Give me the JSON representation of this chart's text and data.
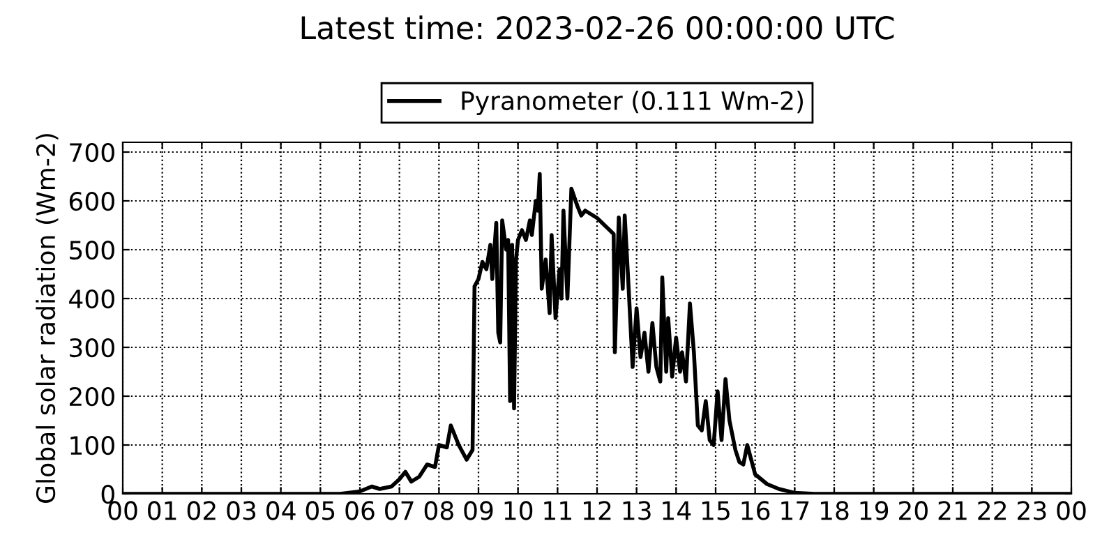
{
  "chart_data": {
    "type": "line",
    "title": "Latest time: 2023-02-26 00:00:00 UTC",
    "ylabel": "Global solar radiation (Wm-2)",
    "xlim": [
      0,
      24
    ],
    "xticks": [
      {
        "value": 0,
        "label": "00"
      },
      {
        "value": 1,
        "label": "01"
      },
      {
        "value": 2,
        "label": "02"
      },
      {
        "value": 3,
        "label": "03"
      },
      {
        "value": 4,
        "label": "04"
      },
      {
        "value": 5,
        "label": "05"
      },
      {
        "value": 6,
        "label": "06"
      },
      {
        "value": 7,
        "label": "07"
      },
      {
        "value": 8,
        "label": "08"
      },
      {
        "value": 9,
        "label": "09"
      },
      {
        "value": 10,
        "label": "10"
      },
      {
        "value": 11,
        "label": "11"
      },
      {
        "value": 12,
        "label": "12"
      },
      {
        "value": 13,
        "label": "13"
      },
      {
        "value": 14,
        "label": "14"
      },
      {
        "value": 15,
        "label": "15"
      },
      {
        "value": 16,
        "label": "16"
      },
      {
        "value": 17,
        "label": "17"
      },
      {
        "value": 18,
        "label": "18"
      },
      {
        "value": 19,
        "label": "19"
      },
      {
        "value": 20,
        "label": "20"
      },
      {
        "value": 21,
        "label": "21"
      },
      {
        "value": 22,
        "label": "22"
      },
      {
        "value": 23,
        "label": "23"
      },
      {
        "value": 24,
        "label": "00"
      }
    ],
    "ylim": [
      0,
      720
    ],
    "yticks": [
      0,
      100,
      200,
      300,
      400,
      500,
      600,
      700
    ],
    "grid": true,
    "legend": "top",
    "marker": "none",
    "line_style": "solid",
    "series": [
      {
        "name": "Pyranometer (0.111 Wm-2)",
        "color": "#000000",
        "x": [
          0,
          5.5,
          6.0,
          6.3,
          6.5,
          6.8,
          7.0,
          7.15,
          7.3,
          7.5,
          7.7,
          7.9,
          8.0,
          8.2,
          8.3,
          8.5,
          8.7,
          8.85,
          8.9,
          9.0,
          9.1,
          9.2,
          9.3,
          9.35,
          9.45,
          9.5,
          9.55,
          9.6,
          9.7,
          9.75,
          9.8,
          9.85,
          9.9,
          9.95,
          10.0,
          10.1,
          10.2,
          10.3,
          10.35,
          10.45,
          10.5,
          10.55,
          10.6,
          10.7,
          10.8,
          10.85,
          10.95,
          11.05,
          11.1,
          11.15,
          11.25,
          11.35,
          11.5,
          11.6,
          11.7,
          12.0,
          12.42,
          12.45,
          12.55,
          12.65,
          12.7,
          12.8,
          12.9,
          13.0,
          13.1,
          13.2,
          13.3,
          13.4,
          13.5,
          13.6,
          13.65,
          13.75,
          13.8,
          13.9,
          14.0,
          14.1,
          14.15,
          14.25,
          14.35,
          14.45,
          14.55,
          14.65,
          14.75,
          14.85,
          14.95,
          15.05,
          15.15,
          15.25,
          15.35,
          15.5,
          15.6,
          15.7,
          15.8,
          15.9,
          16.0,
          16.3,
          16.6,
          17.0,
          17.5,
          24
        ],
        "values": [
          0,
          0,
          5,
          15,
          10,
          15,
          30,
          45,
          25,
          35,
          60,
          55,
          100,
          95,
          140,
          100,
          70,
          90,
          425,
          440,
          475,
          460,
          510,
          440,
          555,
          330,
          310,
          560,
          500,
          520,
          190,
          510,
          175,
          480,
          520,
          540,
          520,
          560,
          530,
          600,
          580,
          655,
          420,
          480,
          370,
          530,
          360,
          460,
          400,
          580,
          400,
          625,
          590,
          570,
          580,
          565,
          532,
          290,
          566,
          420,
          570,
          420,
          260,
          380,
          280,
          330,
          250,
          350,
          260,
          230,
          443,
          250,
          360,
          240,
          320,
          250,
          290,
          230,
          390,
          290,
          140,
          130,
          190,
          110,
          100,
          210,
          110,
          235,
          150,
          90,
          65,
          60,
          100,
          70,
          40,
          20,
          10,
          2,
          0,
          0
        ]
      }
    ]
  }
}
